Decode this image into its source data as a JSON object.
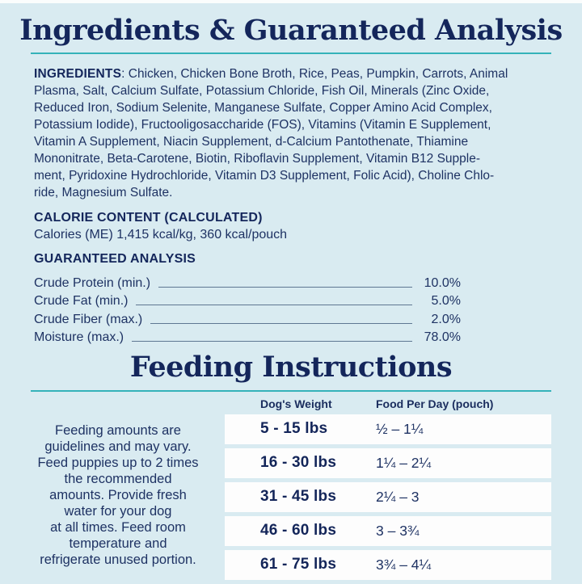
{
  "palette": {
    "background": "#d9ebf1",
    "navy_heading": "#14265b",
    "navy_body": "#1e3263",
    "teal_rule": "#35b2b9",
    "leader_line": "#5e7792",
    "row_white": "#fdfdfd"
  },
  "ingredients_section": {
    "title": "Ingredients & Guaranteed Analysis",
    "ingredients_label": "INGREDIENTS",
    "ingredients_text": ": Chicken, Chicken Bone Broth, Rice, Peas, Pumpkin, Carrots, Animal\nPlasma, Salt, Calcium Sulfate, Potassium Chloride, Fish Oil, Minerals (Zinc Oxide,\nReduced Iron, Sodium Selenite, Manganese Sulfate, Copper Amino Acid Complex,\nPotassium Iodide), Fructooligosaccharide (FOS), Vitamins (Vitamin E Supplement,\nVitamin A Supplement, Niacin Supplement, d-Calcium Pantothenate, Thiamine\nMononitrate, Beta-Carotene, Biotin, Riboflavin Supplement, Vitamin B12 Supple-\nment, Pyridoxine Hydrochloride, Vitamin D3 Supplement, Folic Acid), Choline Chlo-\nride, Magnesium Sulfate.",
    "calorie_heading": "CALORIE CONTENT (CALCULATED)",
    "calorie_text": "Calories (ME) 1,415 kcal/kg, 360 kcal/pouch",
    "analysis_heading": "GUARANTEED ANALYSIS",
    "analysis_rows": [
      {
        "label": "Crude Protein (min.)",
        "value": "10.0%"
      },
      {
        "label": "Crude Fat (min.)",
        "value": "5.0%"
      },
      {
        "label": "Crude Fiber (max.)",
        "value": "2.0%"
      },
      {
        "label": "Moisture (max.)",
        "value": "78.0%"
      }
    ]
  },
  "feeding_section": {
    "title": "Feeding Instructions",
    "note": "Feeding amounts are\nguidelines and may vary.\nFeed puppies up to 2 times\nthe recommended\namounts. Provide fresh\nwater for your dog\nat all times. Feed room\ntemperature and\nrefrigerate unused portion.",
    "columns": [
      "Dog's Weight",
      "Food Per Day (pouch)"
    ],
    "rows": [
      {
        "weight": "5 - 15 lbs",
        "food": "½ – 1¼"
      },
      {
        "weight": "16 - 30 lbs",
        "food": "1¼ – 2¼"
      },
      {
        "weight": "31 - 45 lbs",
        "food": "2¼ – 3"
      },
      {
        "weight": "46 - 60 lbs",
        "food": "3 – 3¾"
      },
      {
        "weight": "61 - 75 lbs",
        "food": "3¾ – 4¼"
      }
    ]
  }
}
